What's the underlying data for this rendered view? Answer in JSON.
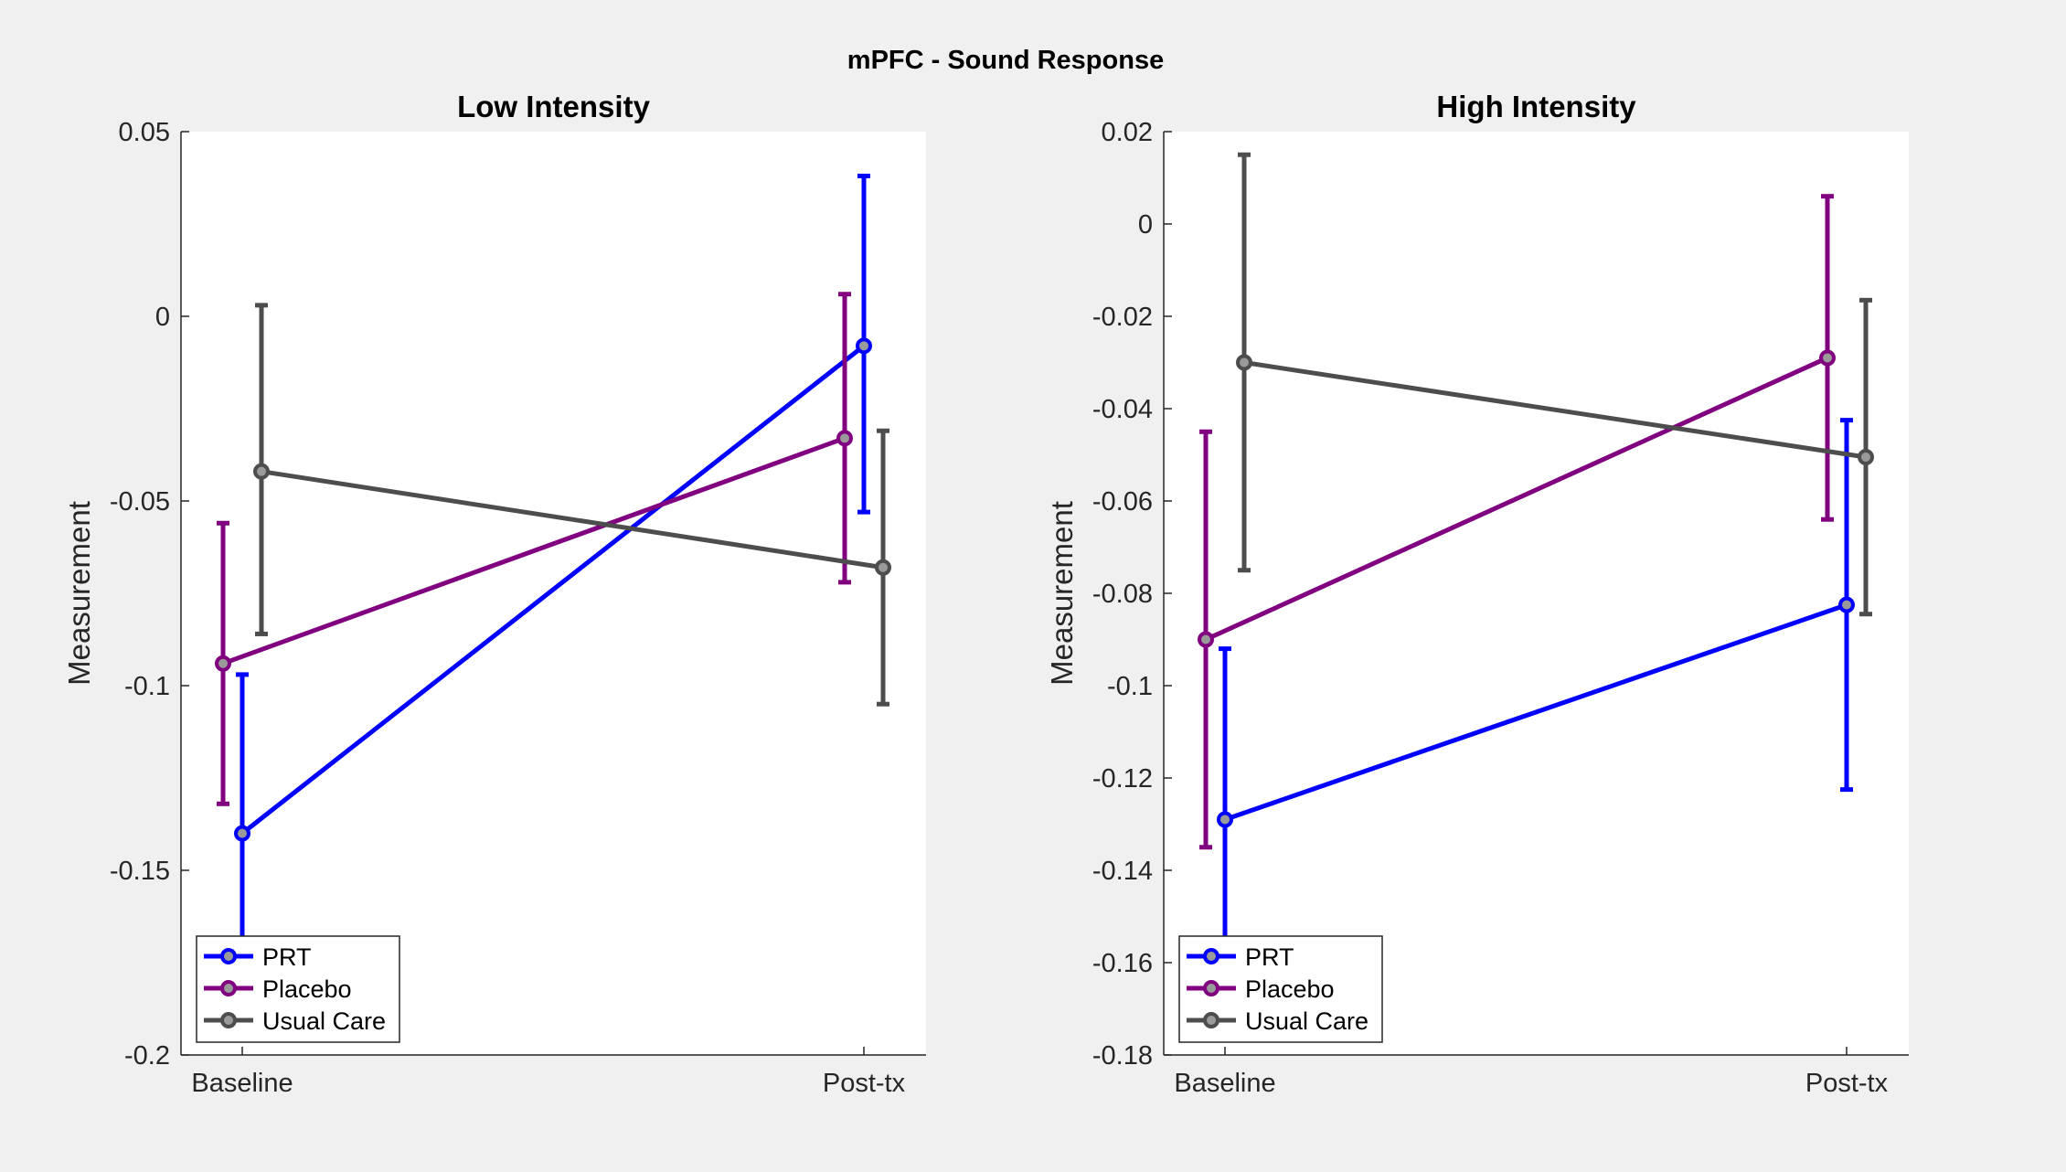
{
  "figure": {
    "suptitle": "mPFC - Sound Response",
    "background": "#f0f0f0"
  },
  "chart_data": [
    {
      "type": "line",
      "title": "Low Intensity",
      "xlabel": "",
      "ylabel": "Measurement",
      "categories": [
        "Baseline",
        "Post-tx"
      ],
      "ylim": [
        -0.2,
        0.05
      ],
      "yticks": [
        -0.2,
        -0.15,
        -0.1,
        -0.05,
        0,
        0.05
      ],
      "ytick_labels": [
        "-0.2",
        "-0.15",
        "-0.1",
        "-0.05",
        "0",
        "0.05"
      ],
      "grid": false,
      "legend_location": "bottom-left",
      "series": [
        {
          "name": "PRT",
          "color": "#0000ff",
          "values": [
            -0.14,
            -0.008
          ],
          "err_low": [
            -0.183,
            -0.053
          ],
          "err_high": [
            -0.097,
            0.038
          ]
        },
        {
          "name": "Placebo",
          "color": "#800080",
          "values": [
            -0.094,
            -0.033
          ],
          "err_low": [
            -0.132,
            -0.072
          ],
          "err_high": [
            -0.056,
            0.006
          ]
        },
        {
          "name": "Usual Care",
          "color": "#4d4d4d",
          "values": [
            -0.042,
            -0.068
          ],
          "err_low": [
            -0.086,
            -0.105
          ],
          "err_high": [
            0.003,
            -0.031
          ]
        }
      ]
    },
    {
      "type": "line",
      "title": "High Intensity",
      "xlabel": "",
      "ylabel": "Measurement",
      "categories": [
        "Baseline",
        "Post-tx"
      ],
      "ylim": [
        -0.18,
        0.02
      ],
      "yticks": [
        -0.18,
        -0.16,
        -0.14,
        -0.12,
        -0.1,
        -0.08,
        -0.06,
        -0.04,
        -0.02,
        0,
        0.02
      ],
      "ytick_labels": [
        "-0.18",
        "-0.16",
        "-0.14",
        "-0.12",
        "-0.1",
        "-0.08",
        "-0.06",
        "-0.04",
        "-0.02",
        "0",
        "0.02"
      ],
      "grid": false,
      "legend_location": "bottom-left",
      "series": [
        {
          "name": "PRT",
          "color": "#0000ff",
          "values": [
            -0.129,
            -0.0825
          ],
          "err_low": [
            -0.166,
            -0.1225
          ],
          "err_high": [
            -0.092,
            -0.0425
          ]
        },
        {
          "name": "Placebo",
          "color": "#800080",
          "values": [
            -0.09,
            -0.029
          ],
          "err_low": [
            -0.135,
            -0.064
          ],
          "err_high": [
            -0.045,
            0.006
          ]
        },
        {
          "name": "Usual Care",
          "color": "#4d4d4d",
          "values": [
            -0.03,
            -0.0505
          ],
          "err_low": [
            -0.075,
            -0.0845
          ],
          "err_high": [
            0.015,
            -0.0165
          ]
        }
      ]
    }
  ]
}
